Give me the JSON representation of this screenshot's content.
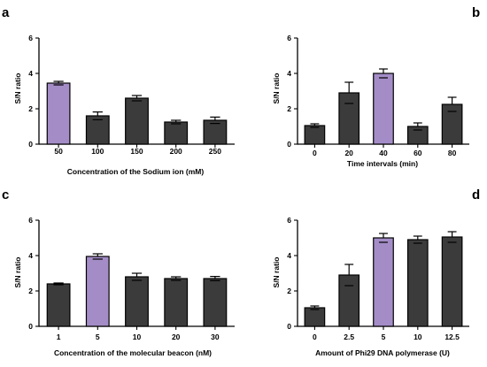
{
  "colors": {
    "bar": "#3b3b3b",
    "highlight": "#a48dc7",
    "stroke": "#000000"
  },
  "chart_data": [
    {
      "panel": "a",
      "type": "bar",
      "categories": [
        "50",
        "100",
        "150",
        "200",
        "250"
      ],
      "values": [
        3.45,
        1.6,
        2.6,
        1.25,
        1.35
      ],
      "errors": [
        0.1,
        0.22,
        0.15,
        0.1,
        0.18
      ],
      "highlight_index": 0,
      "xlabel": "Concentration of the Sodium ion (mM)",
      "ylabel": "S/N ratio",
      "ylim": [
        0,
        6
      ],
      "yticks": [
        0,
        2,
        4,
        6
      ]
    },
    {
      "panel": "b",
      "type": "bar",
      "categories": [
        "0",
        "20",
        "40",
        "60",
        "80"
      ],
      "values": [
        1.05,
        2.9,
        4.0,
        1.0,
        2.25
      ],
      "errors": [
        0.1,
        0.6,
        0.25,
        0.2,
        0.4
      ],
      "highlight_index": 2,
      "xlabel": "Time intervals (min)",
      "ylabel": "S/N ratio",
      "ylim": [
        0,
        6
      ],
      "yticks": [
        0,
        2,
        4,
        6
      ]
    },
    {
      "panel": "c",
      "type": "bar",
      "categories": [
        "1",
        "5",
        "10",
        "20",
        "30"
      ],
      "values": [
        2.4,
        3.95,
        2.8,
        2.7,
        2.7
      ],
      "errors": [
        0.05,
        0.15,
        0.2,
        0.1,
        0.12
      ],
      "highlight_index": 1,
      "xlabel": "Concentration of the molecular beacon (nM)",
      "ylabel": "S/N ratio",
      "ylim": [
        0,
        6
      ],
      "yticks": [
        0,
        2,
        4,
        6
      ]
    },
    {
      "panel": "d",
      "type": "bar",
      "categories": [
        "0",
        "2.5",
        "5",
        "10",
        "12.5"
      ],
      "values": [
        1.05,
        2.9,
        5.0,
        4.9,
        5.05
      ],
      "errors": [
        0.1,
        0.6,
        0.25,
        0.2,
        0.3
      ],
      "highlight_index": 2,
      "xlabel": "Amount of Phi29 DNA polymerase (U)",
      "ylabel": "S/N ratio",
      "ylim": [
        0,
        6
      ],
      "yticks": [
        0,
        2,
        4,
        6
      ]
    }
  ]
}
